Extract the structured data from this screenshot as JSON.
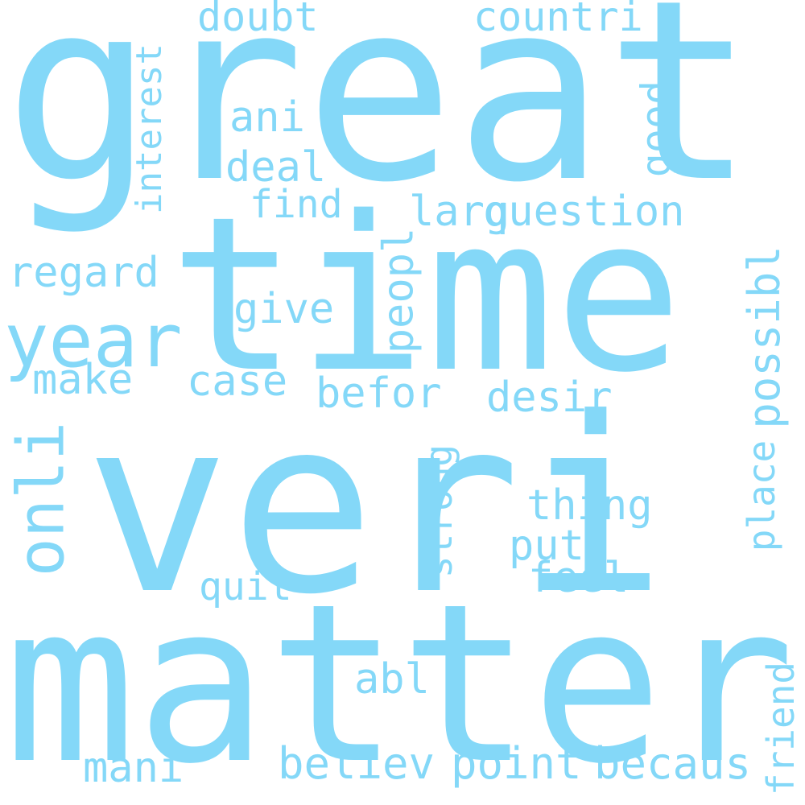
{
  "cloud": {
    "color": "#84d8f8",
    "words": [
      {
        "text": "great"
      },
      {
        "text": "time"
      },
      {
        "text": "veri"
      },
      {
        "text": "matter"
      },
      {
        "text": "year"
      },
      {
        "text": "onli"
      },
      {
        "text": "doubt"
      },
      {
        "text": "countri"
      },
      {
        "text": "interest"
      },
      {
        "text": "ani"
      },
      {
        "text": "deal"
      },
      {
        "text": "good"
      },
      {
        "text": "find"
      },
      {
        "text": "larg"
      },
      {
        "text": "question"
      },
      {
        "text": "peopl"
      },
      {
        "text": "possibl"
      },
      {
        "text": "regard"
      },
      {
        "text": "give"
      },
      {
        "text": "make"
      },
      {
        "text": "case"
      },
      {
        "text": "befor"
      },
      {
        "text": "desir"
      },
      {
        "text": "strong"
      },
      {
        "text": "place"
      },
      {
        "text": "thing"
      },
      {
        "text": "put"
      },
      {
        "text": "feel"
      },
      {
        "text": "quit"
      },
      {
        "text": "abl"
      },
      {
        "text": "friend"
      },
      {
        "text": "mani"
      },
      {
        "text": "believ"
      },
      {
        "text": "point"
      },
      {
        "text": "becaus"
      }
    ]
  }
}
